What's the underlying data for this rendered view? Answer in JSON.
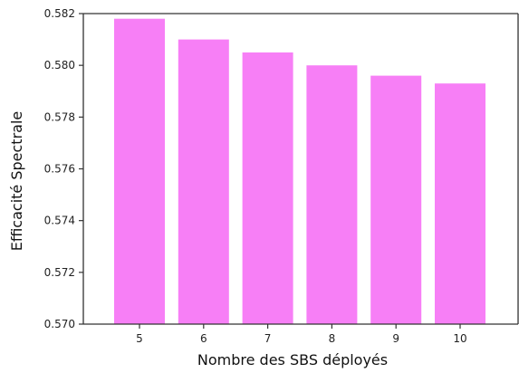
{
  "chart_data": {
    "type": "bar",
    "title": "",
    "xlabel": "Nombre des SBS déployés",
    "ylabel": "Efficacité Spectrale",
    "categories": [
      "5",
      "6",
      "7",
      "8",
      "9",
      "10"
    ],
    "values": [
      0.5818,
      0.581,
      0.5805,
      0.58,
      0.5796,
      0.5793
    ],
    "ylim": [
      0.57,
      0.582
    ],
    "yticks": [
      "0.570",
      "0.572",
      "0.574",
      "0.576",
      "0.578",
      "0.580",
      "0.582"
    ],
    "grid": false,
    "legend": "none",
    "bar_color": "#f77ff6",
    "axis_color": "#333333"
  }
}
